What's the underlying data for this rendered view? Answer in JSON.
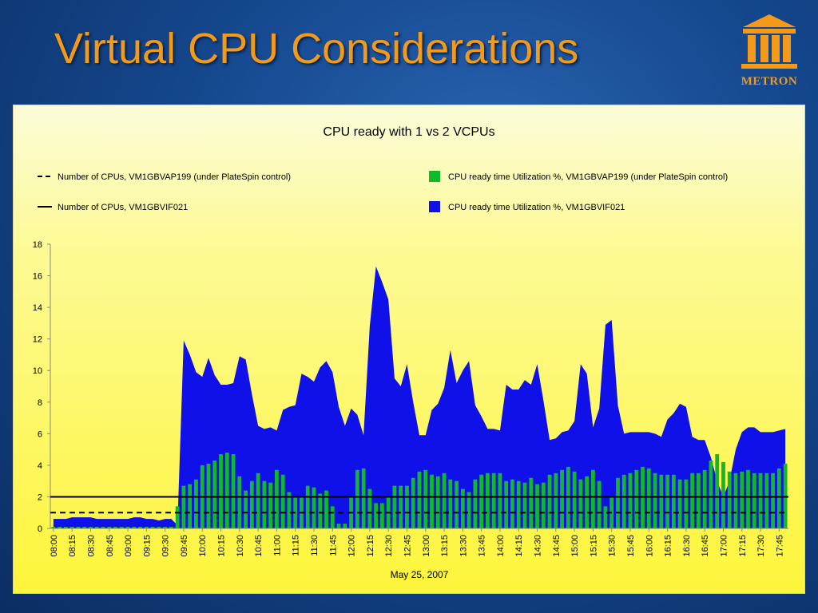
{
  "slide": {
    "title": "Virtual CPU Considerations",
    "logo_text": "METRON",
    "logo_color": "#f39a1a"
  },
  "chart_data": {
    "type": "area",
    "title": "CPU ready with  1 vs 2 VCPUs",
    "xlabel": "May 25, 2007",
    "ylabel": "",
    "ylim": [
      0,
      18
    ],
    "yticks": [
      "0",
      "2",
      "4",
      "6",
      "8",
      "10",
      "12",
      "14",
      "16",
      "18"
    ],
    "legend_position": "top",
    "grid": false,
    "x": [
      "08:00",
      "08:05",
      "08:10",
      "08:15",
      "08:20",
      "08:25",
      "08:30",
      "08:35",
      "08:40",
      "08:45",
      "08:50",
      "08:55",
      "09:00",
      "09:05",
      "09:10",
      "09:15",
      "09:20",
      "09:25",
      "09:30",
      "09:35",
      "09:40",
      "09:45",
      "09:50",
      "09:55",
      "10:00",
      "10:05",
      "10:10",
      "10:15",
      "10:20",
      "10:25",
      "10:30",
      "10:35",
      "10:40",
      "10:45",
      "10:50",
      "10:55",
      "11:00",
      "11:05",
      "11:10",
      "11:15",
      "11:20",
      "11:25",
      "11:30",
      "11:35",
      "11:40",
      "11:45",
      "11:50",
      "11:55",
      "12:00",
      "12:05",
      "12:10",
      "12:15",
      "12:20",
      "12:25",
      "12:30",
      "12:35",
      "12:40",
      "12:45",
      "12:50",
      "12:55",
      "13:00",
      "13:05",
      "13:10",
      "13:15",
      "13:20",
      "13:25",
      "13:30",
      "13:35",
      "13:40",
      "13:45",
      "13:50",
      "13:55",
      "14:00",
      "14:05",
      "14:10",
      "14:15",
      "14:20",
      "14:25",
      "14:30",
      "14:35",
      "14:40",
      "14:45",
      "14:50",
      "14:55",
      "15:00",
      "15:05",
      "15:10",
      "15:15",
      "15:20",
      "15:25",
      "15:30",
      "15:35",
      "15:40",
      "15:45",
      "15:50",
      "15:55",
      "16:00",
      "16:05",
      "16:10",
      "16:15",
      "16:20",
      "16:25",
      "16:30",
      "16:35",
      "16:40",
      "16:45",
      "16:50",
      "16:55",
      "17:00",
      "17:05",
      "17:10",
      "17:15",
      "17:20",
      "17:25",
      "17:30",
      "17:35",
      "17:40",
      "17:45",
      "17:50"
    ],
    "tick_labels": [
      "08:00",
      "08:15",
      "08:30",
      "08:45",
      "09:00",
      "09:15",
      "09:30",
      "09:45",
      "10:00",
      "10:15",
      "10:30",
      "10:45",
      "11:00",
      "11:15",
      "11:30",
      "11:45",
      "12:00",
      "12:15",
      "12:30",
      "12:45",
      "13:00",
      "13:15",
      "13:30",
      "13:45",
      "14:00",
      "14:15",
      "14:30",
      "14:45",
      "15:00",
      "15:15",
      "15:30",
      "15:45",
      "16:00",
      "16:15",
      "16:30",
      "16:45",
      "17:00",
      "17:15",
      "17:30",
      "17:45"
    ],
    "series": [
      {
        "name": "Number of CPUs, VM1GBVAP199 (under PlateSpin control)",
        "kind": "line",
        "style": "dashed",
        "color": "#000000",
        "values": [
          1,
          1,
          1,
          1,
          1,
          1,
          1,
          1,
          1,
          1,
          1,
          1,
          1,
          1,
          1,
          1,
          1,
          1,
          1,
          1,
          1,
          1,
          1,
          1,
          1,
          1,
          1,
          1,
          1,
          1,
          1,
          1,
          1,
          1,
          1,
          1,
          1,
          1,
          1,
          1,
          1,
          1,
          1,
          1,
          1,
          1,
          1,
          1,
          1,
          1,
          1,
          1,
          1,
          1,
          1,
          1,
          1,
          1,
          1,
          1,
          1,
          1,
          1,
          1,
          1,
          1,
          1,
          1,
          1,
          1,
          1,
          1,
          1,
          1,
          1,
          1,
          1,
          1,
          1,
          1,
          1,
          1,
          1,
          1,
          1,
          1,
          1,
          1,
          1,
          1,
          1,
          1,
          1,
          1,
          1,
          1,
          1,
          1,
          1,
          1,
          1,
          1,
          1,
          1,
          1,
          1,
          1,
          1,
          1,
          1,
          1,
          1,
          1,
          1,
          1,
          1,
          1,
          1,
          1
        ]
      },
      {
        "name": "Number of CPUs, VM1GBVIF021",
        "kind": "line",
        "style": "solid",
        "color": "#000000",
        "values": [
          2,
          2,
          2,
          2,
          2,
          2,
          2,
          2,
          2,
          2,
          2,
          2,
          2,
          2,
          2,
          2,
          2,
          2,
          2,
          2,
          2,
          2,
          2,
          2,
          2,
          2,
          2,
          2,
          2,
          2,
          2,
          2,
          2,
          2,
          2,
          2,
          2,
          2,
          2,
          2,
          2,
          2,
          2,
          2,
          2,
          2,
          2,
          2,
          2,
          2,
          2,
          2,
          2,
          2,
          2,
          2,
          2,
          2,
          2,
          2,
          2,
          2,
          2,
          2,
          2,
          2,
          2,
          2,
          2,
          2,
          2,
          2,
          2,
          2,
          2,
          2,
          2,
          2,
          2,
          2,
          2,
          2,
          2,
          2,
          2,
          2,
          2,
          2,
          2,
          2,
          2,
          2,
          2,
          2,
          2,
          2,
          2,
          2,
          2,
          2,
          2,
          2,
          2,
          2,
          2,
          2,
          2,
          2,
          2,
          2,
          2,
          2,
          2,
          2,
          2,
          2,
          2,
          2,
          2
        ]
      },
      {
        "name": "CPU ready time Utilization %, VM1GBVAP199 (under PlateSpin control)",
        "kind": "bar",
        "color": "#11b82a",
        "values": [
          0.1,
          0.1,
          0.1,
          0.1,
          0.1,
          0.1,
          0.1,
          0.1,
          0.1,
          0.1,
          0.1,
          0.1,
          0.1,
          0.1,
          0.1,
          0.1,
          0.1,
          0.1,
          0.1,
          0.1,
          1.4,
          2.7,
          2.8,
          3.1,
          4.0,
          4.1,
          4.3,
          4.7,
          4.8,
          4.7,
          3.3,
          2.4,
          3.0,
          3.5,
          3.0,
          2.9,
          3.7,
          3.4,
          2.3,
          2.0,
          2.0,
          2.7,
          2.6,
          2.2,
          2.4,
          1.4,
          0.3,
          0.3,
          2.0,
          3.7,
          3.8,
          2.5,
          1.6,
          1.6,
          2.0,
          2.7,
          2.7,
          2.7,
          3.2,
          3.6,
          3.7,
          3.4,
          3.3,
          3.5,
          3.1,
          3.0,
          2.5,
          2.3,
          3.1,
          3.4,
          3.5,
          3.5,
          3.5,
          3.0,
          3.1,
          3.0,
          2.9,
          3.2,
          2.8,
          2.9,
          3.4,
          3.5,
          3.7,
          3.9,
          3.6,
          3.1,
          3.3,
          3.7,
          3.0,
          1.4,
          2.0,
          3.2,
          3.4,
          3.5,
          3.7,
          3.9,
          3.8,
          3.5,
          3.4,
          3.4,
          3.4,
          3.1,
          3.1,
          3.5,
          3.5,
          3.7,
          4.3,
          4.7,
          4.2,
          3.6,
          3.5,
          3.6,
          3.7,
          3.5,
          3.5,
          3.5,
          3.5,
          3.8,
          4.1
        ]
      },
      {
        "name": "CPU ready time Utilization %, VM1GBVIF021",
        "kind": "area",
        "color": "#1010e8",
        "values": [
          0.6,
          0.6,
          0.6,
          0.7,
          0.7,
          0.7,
          0.7,
          0.6,
          0.6,
          0.6,
          0.6,
          0.6,
          0.6,
          0.7,
          0.7,
          0.6,
          0.6,
          0.5,
          0.6,
          0.6,
          0.2,
          11.9,
          11.0,
          9.9,
          9.6,
          10.8,
          9.7,
          9.1,
          9.1,
          9.2,
          10.9,
          10.7,
          8.5,
          6.5,
          6.3,
          6.4,
          6.2,
          7.5,
          7.7,
          7.8,
          9.8,
          9.6,
          9.3,
          10.2,
          10.6,
          9.9,
          7.7,
          6.5,
          7.6,
          7.2,
          5.9,
          12.8,
          16.6,
          15.6,
          14.5,
          9.5,
          9.0,
          10.4,
          8.0,
          5.9,
          5.9,
          7.5,
          7.9,
          8.9,
          11.3,
          9.2,
          10.0,
          10.6,
          7.8,
          7.1,
          6.3,
          6.3,
          6.2,
          9.1,
          8.8,
          8.8,
          9.4,
          9.1,
          10.4,
          8.1,
          5.6,
          5.7,
          6.1,
          6.2,
          6.8,
          10.4,
          9.8,
          6.4,
          7.6,
          12.9,
          13.2,
          7.8,
          6.0,
          6.1,
          6.1,
          6.1,
          6.1,
          6.0,
          5.8,
          6.9,
          7.3,
          7.9,
          7.7,
          5.8,
          5.6,
          5.6,
          4.5,
          3.0,
          2.0,
          3.0,
          5.0,
          6.1,
          6.4,
          6.4,
          6.1,
          6.1,
          6.1,
          6.2,
          6.3
        ]
      }
    ]
  }
}
